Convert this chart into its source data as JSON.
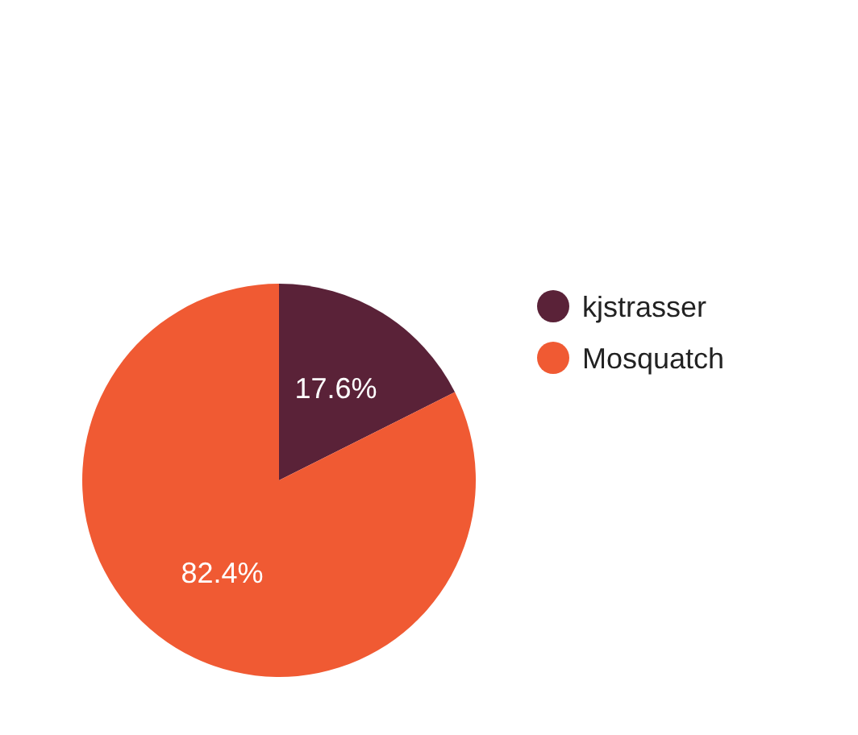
{
  "chart_data": {
    "type": "pie",
    "categories": [
      "kjstrasser",
      "Mosquatch"
    ],
    "values": [
      17.6,
      82.4
    ],
    "colors": [
      "#5a2238",
      "#f05a33"
    ],
    "value_labels": [
      "17.6%",
      "82.4%"
    ],
    "legend": "right"
  }
}
